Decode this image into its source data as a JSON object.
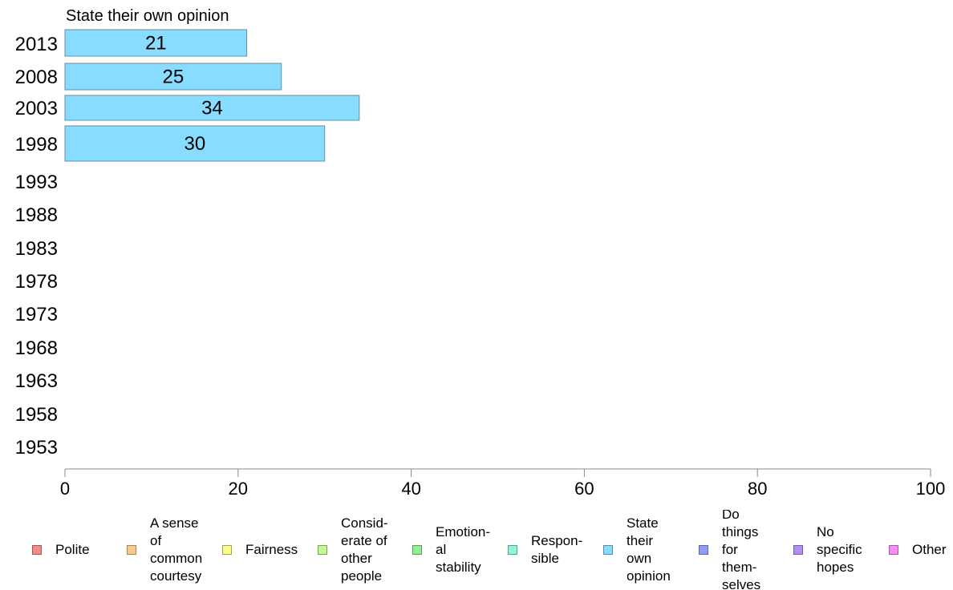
{
  "chart_data": {
    "type": "bar",
    "orientation": "horizontal",
    "title": "State their own opinion",
    "categories": [
      "2013",
      "2008",
      "2003",
      "1998",
      "1993",
      "1988",
      "1983",
      "1978",
      "1973",
      "1968",
      "1963",
      "1958",
      "1953"
    ],
    "series": [
      {
        "name": "State their own opinion",
        "values": [
          21,
          25,
          34,
          30,
          null,
          null,
          null,
          null,
          null,
          null,
          null,
          null,
          null
        ],
        "color": "#88dcff"
      }
    ],
    "xlim": [
      0,
      100
    ],
    "xticks": [
      "0",
      "20",
      "40",
      "60",
      "80",
      "100"
    ],
    "grid": false,
    "legend_position": "bottom"
  },
  "legend": [
    {
      "label": "Polite",
      "color": "#f28b8b"
    },
    {
      "label": "A sense\nof\ncommon\ncourtesy",
      "color": "#f9c98a"
    },
    {
      "label": "Fairness",
      "color": "#fbfb8c"
    },
    {
      "label": "Consid-\nerate of\nother\npeople",
      "color": "#c2f88e"
    },
    {
      "label": "Emotion-\nal\nstability",
      "color": "#8ef191"
    },
    {
      "label": "Respon-\nsible",
      "color": "#8ef5df"
    },
    {
      "label": "State\ntheir\nown\nopinion",
      "color": "#88dcff"
    },
    {
      "label": "Do\nthings\nfor\nthem-\nselves",
      "color": "#8f9ff7"
    },
    {
      "label": "No\nspecific\nhopes",
      "color": "#b48ef5"
    },
    {
      "label": "Other",
      "color": "#f48ef5"
    }
  ]
}
